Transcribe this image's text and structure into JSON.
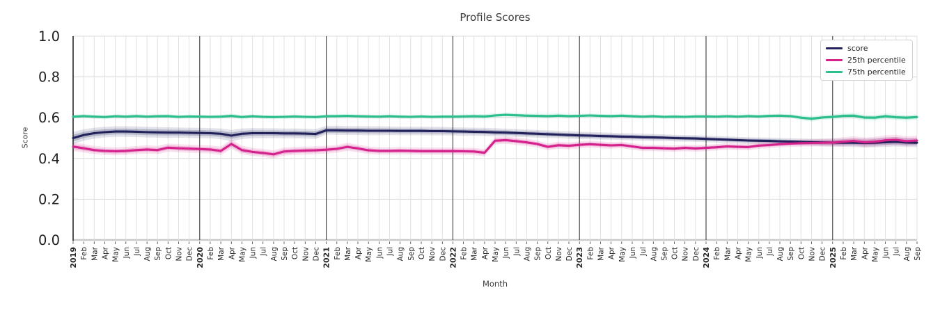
{
  "chart_data": {
    "type": "line",
    "title": "Profile Scores",
    "xlabel": "Month",
    "ylabel": "Score",
    "ylim": [
      0.0,
      1.0
    ],
    "yticks": [
      "0.0",
      "0.2",
      "0.4",
      "0.6",
      "0.8",
      "1.0"
    ],
    "grid": true,
    "legend_position": "upper right",
    "year_boundary_indices": [
      12,
      24,
      36,
      48,
      60,
      72
    ],
    "categories": [
      "2019",
      "Feb",
      "Mar",
      "Apr",
      "May",
      "Jun",
      "Jul",
      "Aug",
      "Sep",
      "Oct",
      "Nov",
      "Dec",
      "2020",
      "Feb",
      "Mar",
      "Apr",
      "May",
      "Jun",
      "Jul",
      "Aug",
      "Sep",
      "Oct",
      "Nov",
      "Dec",
      "2021",
      "Feb",
      "Mar",
      "Apr",
      "May",
      "Jun",
      "Jul",
      "Aug",
      "Sep",
      "Oct",
      "Nov",
      "Dec",
      "2022",
      "Feb",
      "Mar",
      "Apr",
      "May",
      "Jun",
      "Jul",
      "Aug",
      "Sep",
      "Oct",
      "Nov",
      "Dec",
      "2023",
      "Feb",
      "Mar",
      "Apr",
      "May",
      "Jun",
      "Jul",
      "Aug",
      "Sep",
      "Oct",
      "Nov",
      "Dec",
      "2024",
      "Feb",
      "Mar",
      "Apr",
      "May",
      "Jun",
      "Jul",
      "Aug",
      "Sep",
      "Oct",
      "Nov",
      "Dec",
      "2025",
      "Feb",
      "Mar",
      "Apr",
      "May",
      "Jun",
      "Jul",
      "Aug",
      "Sep"
    ],
    "series": [
      {
        "name": "score",
        "color": "#21215c",
        "values": [
          0.5,
          0.515,
          0.524,
          0.529,
          0.532,
          0.532,
          0.531,
          0.529,
          0.528,
          0.527,
          0.527,
          0.526,
          0.525,
          0.524,
          0.521,
          0.512,
          0.521,
          0.524,
          0.524,
          0.524,
          0.523,
          0.523,
          0.522,
          0.52,
          0.538,
          0.538,
          0.537,
          0.537,
          0.536,
          0.536,
          0.536,
          0.535,
          0.535,
          0.535,
          0.534,
          0.534,
          0.533,
          0.532,
          0.531,
          0.53,
          0.528,
          0.527,
          0.525,
          0.523,
          0.521,
          0.519,
          0.517,
          0.515,
          0.513,
          0.512,
          0.51,
          0.509,
          0.507,
          0.506,
          0.504,
          0.503,
          0.502,
          0.5,
          0.499,
          0.498,
          0.496,
          0.494,
          0.492,
          0.49,
          0.488,
          0.487,
          0.486,
          0.484,
          0.483,
          0.481,
          0.48,
          0.479,
          0.478,
          0.477,
          0.477,
          0.476,
          0.477,
          0.48,
          0.482,
          0.478,
          0.477
        ],
        "band": [
          0.03,
          0.028,
          0.027,
          0.026,
          0.026,
          0.026,
          0.026,
          0.026,
          0.026,
          0.026,
          0.025,
          0.025,
          0.025,
          0.025,
          0.026,
          0.028,
          0.026,
          0.025,
          0.024,
          0.024,
          0.024,
          0.024,
          0.024,
          0.024,
          0.022,
          0.022,
          0.022,
          0.022,
          0.022,
          0.022,
          0.021,
          0.021,
          0.021,
          0.021,
          0.021,
          0.021,
          0.02,
          0.02,
          0.02,
          0.02,
          0.02,
          0.019,
          0.019,
          0.019,
          0.019,
          0.019,
          0.018,
          0.018,
          0.018,
          0.018,
          0.018,
          0.017,
          0.017,
          0.017,
          0.017,
          0.017,
          0.016,
          0.016,
          0.016,
          0.016,
          0.016,
          0.016,
          0.016,
          0.016,
          0.016,
          0.016,
          0.016,
          0.016,
          0.016,
          0.017,
          0.017,
          0.018,
          0.019,
          0.02,
          0.021,
          0.022,
          0.022,
          0.023,
          0.023,
          0.022,
          0.022
        ]
      },
      {
        "name": "25th percentile",
        "color": "#d4218c",
        "values": [
          0.458,
          0.45,
          0.441,
          0.437,
          0.435,
          0.437,
          0.441,
          0.444,
          0.441,
          0.453,
          0.45,
          0.448,
          0.446,
          0.444,
          0.437,
          0.471,
          0.441,
          0.432,
          0.427,
          0.42,
          0.434,
          0.437,
          0.439,
          0.44,
          0.443,
          0.447,
          0.457,
          0.449,
          0.44,
          0.437,
          0.437,
          0.438,
          0.437,
          0.436,
          0.436,
          0.436,
          0.436,
          0.435,
          0.434,
          0.428,
          0.487,
          0.49,
          0.485,
          0.479,
          0.471,
          0.457,
          0.465,
          0.462,
          0.467,
          0.47,
          0.467,
          0.464,
          0.466,
          0.459,
          0.452,
          0.452,
          0.45,
          0.448,
          0.452,
          0.449,
          0.452,
          0.455,
          0.459,
          0.457,
          0.456,
          0.463,
          0.466,
          0.47,
          0.473,
          0.475,
          0.476,
          0.477,
          0.478,
          0.482,
          0.486,
          0.479,
          0.482,
          0.489,
          0.491,
          0.485,
          0.488
        ],
        "band": [
          0.022,
          0.021,
          0.02,
          0.02,
          0.02,
          0.02,
          0.02,
          0.02,
          0.02,
          0.02,
          0.02,
          0.02,
          0.02,
          0.02,
          0.021,
          0.024,
          0.021,
          0.02,
          0.02,
          0.02,
          0.02,
          0.02,
          0.02,
          0.02,
          0.019,
          0.019,
          0.02,
          0.019,
          0.019,
          0.018,
          0.018,
          0.018,
          0.018,
          0.018,
          0.018,
          0.018,
          0.018,
          0.018,
          0.018,
          0.018,
          0.018,
          0.018,
          0.018,
          0.018,
          0.017,
          0.017,
          0.017,
          0.017,
          0.017,
          0.017,
          0.017,
          0.016,
          0.016,
          0.016,
          0.016,
          0.016,
          0.016,
          0.016,
          0.016,
          0.016,
          0.016,
          0.016,
          0.016,
          0.016,
          0.016,
          0.016,
          0.016,
          0.016,
          0.016,
          0.017,
          0.018,
          0.019,
          0.02,
          0.022,
          0.023,
          0.024,
          0.024,
          0.025,
          0.025,
          0.024,
          0.024
        ]
      },
      {
        "name": "75th percentile",
        "color": "#2dbe8d",
        "values": [
          0.605,
          0.608,
          0.605,
          0.603,
          0.607,
          0.605,
          0.608,
          0.605,
          0.607,
          0.608,
          0.604,
          0.606,
          0.605,
          0.604,
          0.605,
          0.609,
          0.603,
          0.607,
          0.604,
          0.603,
          0.604,
          0.606,
          0.604,
          0.603,
          0.607,
          0.608,
          0.609,
          0.607,
          0.606,
          0.605,
          0.607,
          0.605,
          0.604,
          0.606,
          0.604,
          0.605,
          0.605,
          0.606,
          0.607,
          0.606,
          0.611,
          0.614,
          0.612,
          0.61,
          0.609,
          0.608,
          0.61,
          0.608,
          0.609,
          0.611,
          0.609,
          0.608,
          0.61,
          0.607,
          0.605,
          0.607,
          0.604,
          0.605,
          0.604,
          0.606,
          0.606,
          0.605,
          0.607,
          0.605,
          0.608,
          0.606,
          0.609,
          0.61,
          0.608,
          0.6,
          0.595,
          0.601,
          0.604,
          0.609,
          0.61,
          0.601,
          0.6,
          0.607,
          0.602,
          0.6,
          0.603
        ],
        "band": [
          0.01,
          0.01,
          0.01,
          0.01,
          0.01,
          0.01,
          0.01,
          0.01,
          0.01,
          0.01,
          0.01,
          0.01,
          0.01,
          0.01,
          0.01,
          0.012,
          0.01,
          0.01,
          0.01,
          0.01,
          0.01,
          0.01,
          0.01,
          0.01,
          0.01,
          0.01,
          0.01,
          0.01,
          0.01,
          0.01,
          0.01,
          0.01,
          0.01,
          0.01,
          0.01,
          0.01,
          0.011,
          0.011,
          0.011,
          0.011,
          0.011,
          0.011,
          0.011,
          0.011,
          0.011,
          0.011,
          0.011,
          0.011,
          0.01,
          0.01,
          0.01,
          0.01,
          0.01,
          0.01,
          0.01,
          0.01,
          0.01,
          0.01,
          0.01,
          0.01,
          0.01,
          0.01,
          0.01,
          0.01,
          0.01,
          0.01,
          0.01,
          0.01,
          0.01,
          0.012,
          0.014,
          0.012,
          0.013,
          0.013,
          0.014,
          0.014,
          0.014,
          0.014,
          0.014,
          0.014,
          0.014
        ]
      }
    ]
  }
}
